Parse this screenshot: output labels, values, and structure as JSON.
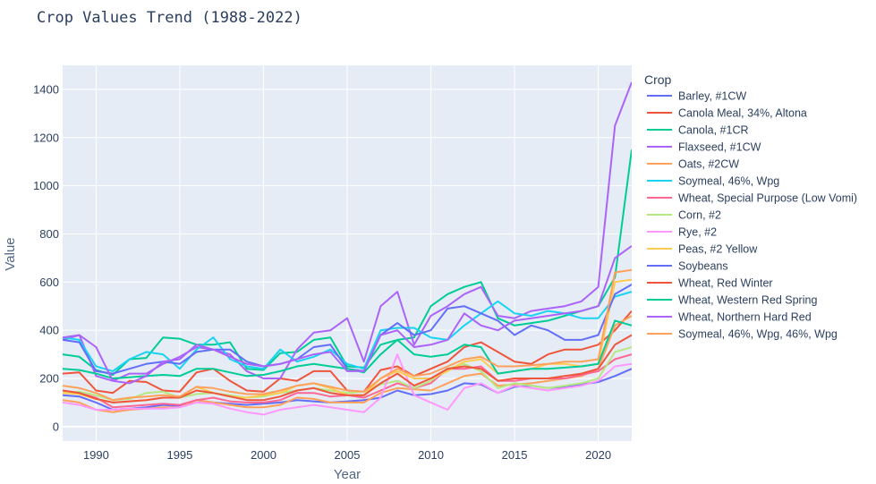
{
  "chart_data": {
    "type": "line",
    "title": "Crop Values Trend (1988-2022)",
    "xlabel": "Year",
    "ylabel": "Value",
    "xlim": [
      1988,
      2022
    ],
    "ylim": [
      -60,
      1500
    ],
    "x_ticks": [
      1990,
      1995,
      2000,
      2005,
      2010,
      2015,
      2020
    ],
    "y_ticks": [
      0,
      200,
      400,
      600,
      800,
      1000,
      1200,
      1400
    ],
    "grid": true,
    "legend_title": "Crop",
    "legend_position": "right",
    "x": [
      1988,
      1989,
      1990,
      1991,
      1992,
      1993,
      1994,
      1995,
      1996,
      1997,
      1998,
      1999,
      2000,
      2001,
      2002,
      2003,
      2004,
      2005,
      2006,
      2007,
      2008,
      2009,
      2010,
      2011,
      2012,
      2013,
      2014,
      2015,
      2016,
      2017,
      2018,
      2019,
      2020,
      2021,
      2022
    ],
    "series": [
      {
        "name": "Barley, #1CW",
        "color": "#636efa",
        "values": [
          130,
          125,
          100,
          70,
          75,
          80,
          90,
          85,
          110,
          100,
          95,
          90,
          95,
          100,
          110,
          105,
          100,
          105,
          110,
          120,
          150,
          130,
          135,
          150,
          180,
          175,
          140,
          165,
          170,
          160,
          165,
          175,
          185,
          210,
          240
        ]
      },
      {
        "name": "Canola Meal, 34%, Altona",
        "color": "#ef553b",
        "values": [
          220,
          225,
          150,
          140,
          190,
          185,
          150,
          145,
          225,
          240,
          190,
          150,
          145,
          200,
          190,
          230,
          230,
          150,
          145,
          235,
          250,
          210,
          240,
          270,
          330,
          350,
          310,
          270,
          260,
          300,
          320,
          320,
          340,
          400,
          480
        ]
      },
      {
        "name": "Canola, #1CR",
        "color": "#00cc96",
        "values": [
          300,
          290,
          235,
          215,
          280,
          285,
          370,
          365,
          340,
          340,
          350,
          240,
          235,
          305,
          310,
          360,
          370,
          250,
          245,
          340,
          360,
          370,
          500,
          550,
          580,
          600,
          450,
          420,
          430,
          440,
          460,
          480,
          500,
          620,
          1150
        ]
      },
      {
        "name": "Flaxseed, #1CW",
        "color": "#ab63fa",
        "values": [
          360,
          380,
          210,
          190,
          220,
          220,
          260,
          290,
          330,
          320,
          300,
          230,
          200,
          200,
          320,
          390,
          400,
          450,
          270,
          500,
          560,
          340,
          460,
          500,
          550,
          580,
          460,
          450,
          480,
          490,
          500,
          520,
          580,
          1250,
          1430
        ]
      },
      {
        "name": "Oats, #2CW",
        "color": "#ffa15a",
        "values": [
          110,
          100,
          70,
          60,
          70,
          75,
          80,
          80,
          110,
          100,
          90,
          80,
          80,
          90,
          120,
          115,
          100,
          100,
          100,
          140,
          160,
          155,
          150,
          180,
          210,
          220,
          170,
          175,
          180,
          190,
          200,
          210,
          240,
          420,
          460
        ]
      },
      {
        "name": "Soymeal, 46%, Wpg",
        "color": "#19d3f3",
        "values": [
          370,
          360,
          250,
          230,
          280,
          310,
          300,
          240,
          320,
          370,
          280,
          250,
          240,
          320,
          270,
          290,
          320,
          260,
          240,
          400,
          410,
          410,
          370,
          360,
          420,
          470,
          520,
          470,
          460,
          480,
          470,
          450,
          450,
          540,
          560
        ]
      },
      {
        "name": "Wheat, Special Purpose (Low Vomi)",
        "color": "#ff6692",
        "values": [
          150,
          140,
          120,
          80,
          85,
          90,
          95,
          90,
          110,
          120,
          105,
          100,
          100,
          110,
          140,
          140,
          125,
          130,
          120,
          150,
          180,
          160,
          180,
          240,
          240,
          250,
          190,
          190,
          200,
          200,
          200,
          215,
          230,
          280,
          300
        ]
      },
      {
        "name": "Corn, #2",
        "color": "#b6e880",
        "values": [
          140,
          145,
          130,
          110,
          115,
          140,
          145,
          120,
          135,
          140,
          130,
          120,
          125,
          140,
          150,
          160,
          150,
          140,
          145,
          175,
          190,
          160,
          190,
          240,
          260,
          230,
          160,
          180,
          170,
          160,
          170,
          180,
          200,
          310,
          330
        ]
      },
      {
        "name": "Rye, #2",
        "color": "#ff97ff",
        "values": [
          100,
          90,
          70,
          70,
          75,
          75,
          75,
          80,
          100,
          95,
          75,
          60,
          50,
          70,
          80,
          90,
          80,
          70,
          60,
          120,
          300,
          130,
          100,
          70,
          160,
          180,
          140,
          170,
          160,
          150,
          160,
          170,
          190,
          250,
          260
        ]
      },
      {
        "name": "Peas, #2 Yellow",
        "color": "#fecb52",
        "values": [
          140,
          135,
          115,
          100,
          105,
          110,
          120,
          120,
          165,
          140,
          125,
          120,
          130,
          140,
          170,
          180,
          160,
          130,
          130,
          200,
          230,
          200,
          200,
          230,
          270,
          280,
          220,
          230,
          240,
          260,
          260,
          250,
          260,
          600,
          610
        ]
      },
      {
        "name": "Soybeans",
        "color": "#636efa",
        "values": [
          360,
          350,
          230,
          220,
          240,
          260,
          270,
          260,
          310,
          320,
          320,
          270,
          250,
          260,
          280,
          330,
          340,
          240,
          230,
          380,
          430,
          380,
          400,
          490,
          500,
          470,
          440,
          380,
          420,
          400,
          360,
          360,
          380,
          550,
          590
        ]
      },
      {
        "name": "Wheat, Red Winter",
        "color": "#ef553b",
        "values": [
          150,
          140,
          115,
          100,
          105,
          110,
          120,
          120,
          150,
          140,
          125,
          110,
          110,
          125,
          150,
          160,
          140,
          130,
          130,
          180,
          220,
          170,
          200,
          240,
          250,
          240,
          190,
          200,
          200,
          200,
          210,
          220,
          240,
          340,
          380
        ]
      },
      {
        "name": "Wheat, Western Red Spring",
        "color": "#00cc96",
        "values": [
          240,
          235,
          220,
          200,
          205,
          210,
          215,
          210,
          240,
          240,
          225,
          210,
          215,
          230,
          250,
          260,
          250,
          240,
          225,
          300,
          360,
          300,
          290,
          300,
          340,
          330,
          220,
          230,
          240,
          240,
          245,
          250,
          260,
          440,
          420
        ]
      },
      {
        "name": "Wheat, Northern Hard Red",
        "color": "#ab63fa",
        "values": [
          370,
          380,
          330,
          190,
          180,
          210,
          270,
          280,
          340,
          320,
          290,
          260,
          250,
          260,
          280,
          300,
          310,
          230,
          230,
          380,
          400,
          330,
          340,
          360,
          470,
          420,
          400,
          440,
          450,
          460,
          470,
          480,
          500,
          700,
          750
        ]
      },
      {
        "name": "Soymeal, 46%, Wpg, 46%, Wpg",
        "color": "#ffa15a",
        "values": [
          170,
          160,
          140,
          110,
          120,
          125,
          130,
          125,
          165,
          160,
          145,
          135,
          135,
          150,
          170,
          180,
          165,
          150,
          145,
          200,
          240,
          210,
          220,
          250,
          280,
          290,
          250,
          250,
          255,
          260,
          270,
          270,
          280,
          640,
          650
        ]
      }
    ]
  }
}
